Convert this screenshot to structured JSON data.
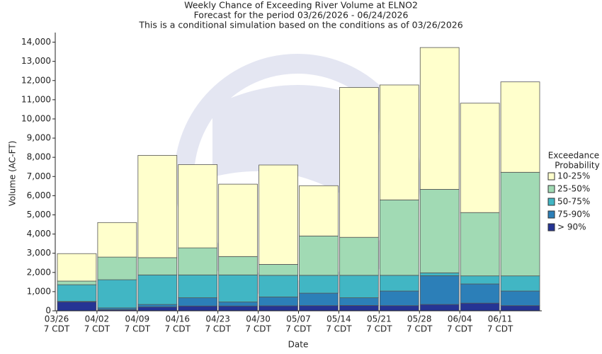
{
  "chart_data": {
    "type": "stacked_bar",
    "title": [
      "Weekly Chance of Exceeding River Volume at ELNO2",
      "Forecast for the period 03/26/2026 - 06/24/2026",
      "This is a conditional simulation based on the conditions as of 03/26/2026"
    ],
    "x_label": "Date",
    "y_label": "Volume (AC-FT)",
    "legend_title": [
      "Exceedance",
      "Probability"
    ],
    "categories": [
      [
        "03/26",
        "7 CDT"
      ],
      [
        "04/02",
        "7 CDT"
      ],
      [
        "04/09",
        "7 CDT"
      ],
      [
        "04/16",
        "7 CDT"
      ],
      [
        "04/23",
        "7 CDT"
      ],
      [
        "04/30",
        "7 CDT"
      ],
      [
        "05/07",
        "7 CDT"
      ],
      [
        "05/14",
        "7 CDT"
      ],
      [
        "05/21",
        "7 CDT"
      ],
      [
        "05/28",
        "7 CDT"
      ],
      [
        "06/04",
        "7 CDT"
      ],
      [
        "06/11",
        "7 CDT"
      ]
    ],
    "series": [
      {
        "name": "> 90%",
        "color": "#253494",
        "values": [
          470,
          60,
          200,
          250,
          250,
          260,
          270,
          280,
          270,
          330,
          400,
          270
        ]
      },
      {
        "name": "75-90%",
        "color": "#2c7fb8",
        "values": [
          20,
          90,
          130,
          430,
          210,
          460,
          650,
          400,
          760,
          1500,
          1000,
          760
        ]
      },
      {
        "name": "50-75%",
        "color": "#41b6c4",
        "values": [
          870,
          1470,
          1540,
          1190,
          1410,
          1130,
          930,
          1170,
          820,
          150,
          420,
          790
        ]
      },
      {
        "name": "25-50%",
        "color": "#a1dab4",
        "values": [
          190,
          1180,
          900,
          1410,
          960,
          570,
          2050,
          1980,
          3930,
          4350,
          3300,
          5400
        ]
      },
      {
        "name": "10-25%",
        "color": "#ffffcc",
        "values": [
          1430,
          1800,
          5330,
          4340,
          3770,
          5180,
          2620,
          7810,
          5990,
          7390,
          5700,
          4710
        ]
      }
    ],
    "ylim": [
      0,
      14500
    ],
    "yticks": [
      0,
      {
        "value": 1000,
        "label": "1,000"
      },
      {
        "value": 2000,
        "label": "2,000"
      },
      {
        "value": 3000,
        "label": "3,000"
      },
      {
        "value": 4000,
        "label": "4,000"
      },
      {
        "value": 5000,
        "label": "5,000"
      },
      {
        "value": 6000,
        "label": "6,000"
      },
      {
        "value": 7000,
        "label": "7,000"
      },
      {
        "value": 8000,
        "label": "8,000"
      },
      {
        "value": 9000,
        "label": "9,000"
      },
      {
        "value": 10000,
        "label": "10,000"
      },
      {
        "value": 11000,
        "label": "11,000"
      },
      {
        "value": 12000,
        "label": "12,000"
      },
      {
        "value": 13000,
        "label": "13,000"
      },
      {
        "value": 14000,
        "label": "14,000"
      }
    ],
    "grid": false,
    "legend": "right"
  }
}
